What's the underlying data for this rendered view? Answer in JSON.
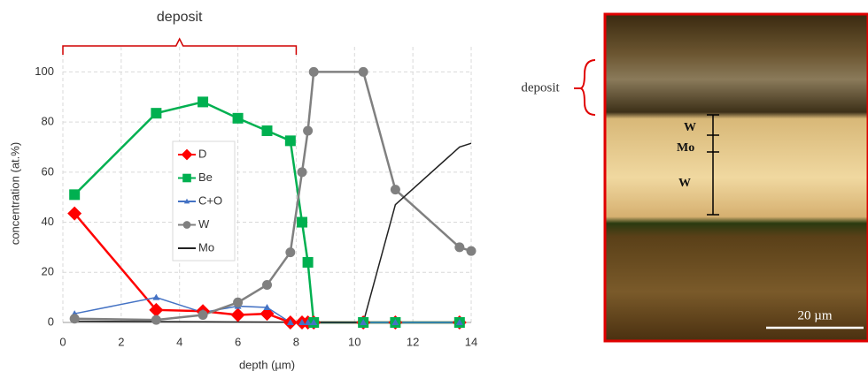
{
  "chart_data": {
    "type": "line",
    "xlabel": "depth (µm)",
    "ylabel": "concentration (at.%)",
    "annotation": "deposit",
    "xlim": [
      0,
      14
    ],
    "xticks": [
      0,
      2,
      4,
      6,
      8,
      10,
      12,
      14
    ],
    "ylim": [
      0,
      110
    ],
    "yticks": [
      0,
      20,
      40,
      60,
      80,
      100
    ],
    "grid": true,
    "legend": "center",
    "series": [
      {
        "name": "D",
        "color": "#ff0000",
        "marker": "diamond",
        "x": [
          0.4,
          3.2,
          4.8,
          6,
          7,
          7.8,
          8.2,
          8.4,
          8.6,
          10.3,
          11.4,
          13.6
        ],
        "values": [
          43.5,
          5,
          4.5,
          3,
          3.5,
          0,
          0,
          0,
          0,
          0,
          0,
          0
        ]
      },
      {
        "name": "Be",
        "color": "#00b050",
        "marker": "square",
        "x": [
          0.4,
          3.2,
          4.8,
          6,
          7,
          7.8,
          8.2,
          8.4,
          8.6,
          10.3,
          11.4,
          13.6
        ],
        "values": [
          51,
          83.5,
          88,
          81.5,
          76.5,
          72.5,
          40,
          24,
          0,
          0,
          0,
          0
        ]
      },
      {
        "name": "C+O",
        "color": "#4472c4",
        "marker": "triangle",
        "x": [
          0.4,
          3.2,
          4.8,
          6,
          7,
          7.8,
          8.2,
          8.4,
          8.6,
          10.3,
          11.4,
          13.6
        ],
        "values": [
          3.5,
          10,
          4,
          6.5,
          6,
          0,
          0,
          0,
          0,
          0,
          0,
          0
        ]
      },
      {
        "name": "W",
        "color": "#808080",
        "marker": "circle",
        "x": [
          0.4,
          3.2,
          4.8,
          6,
          7,
          7.8,
          8.2,
          8.4,
          8.6,
          10.3,
          11.4,
          13.6,
          14
        ],
        "values": [
          1.5,
          1,
          3,
          8,
          15,
          28,
          60,
          76.5,
          100,
          100,
          53,
          30,
          28.5
        ]
      },
      {
        "name": "Mo",
        "color": "#222222",
        "marker": null,
        "x": [
          0.4,
          10.3,
          11.4,
          13.6,
          14
        ],
        "values": [
          0.5,
          0,
          47,
          70,
          71.5
        ]
      }
    ]
  },
  "micrograph": {
    "deposit_label": "deposit",
    "layers": [
      "W",
      "Mo",
      "W"
    ],
    "scale_bar": "20 µm"
  }
}
